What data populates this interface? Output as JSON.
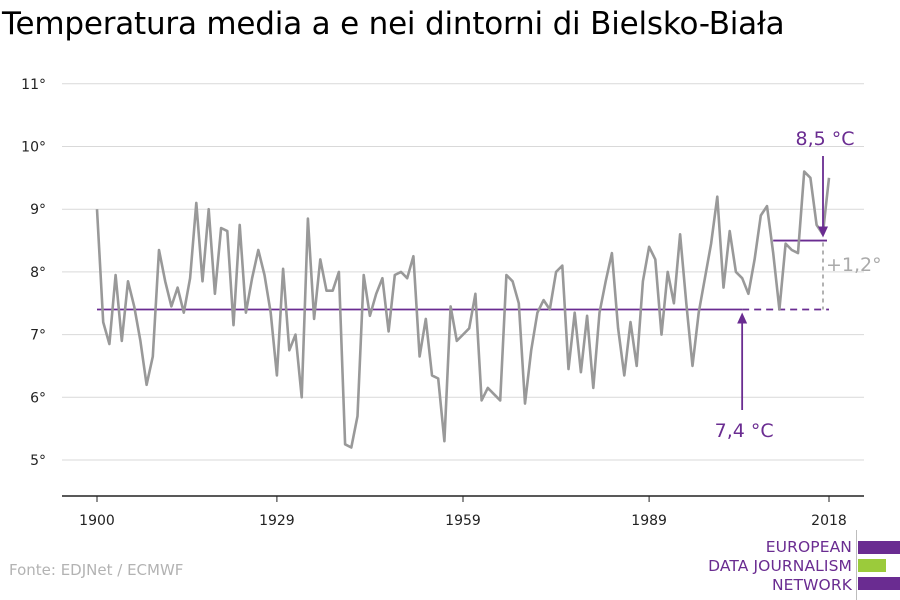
{
  "chart_data": {
    "type": "line",
    "title": "Temperatura media a e nei dintorni di Bielsko-Biała",
    "xlabel": "",
    "ylabel": "",
    "xlim": [
      1900,
      2018
    ],
    "ylim": [
      4.5,
      11.2
    ],
    "x_ticks": [
      1900,
      1929,
      1959,
      1989,
      2018
    ],
    "x_tick_labels": [
      "1900",
      "1929",
      "1959",
      "1989",
      "2018"
    ],
    "y_ticks": [
      5,
      6,
      7,
      8,
      9,
      10,
      11
    ],
    "y_tick_labels": [
      "5°",
      "6°",
      "7°",
      "8°",
      "9°",
      "10°",
      "11°"
    ],
    "grid": true,
    "series": [
      {
        "color": "#999999",
        "x_start": 1900,
        "values": [
          9.0,
          7.2,
          6.85,
          7.95,
          6.9,
          7.85,
          7.45,
          6.9,
          6.2,
          6.65,
          8.35,
          7.85,
          7.45,
          7.75,
          7.35,
          7.9,
          9.1,
          7.85,
          9.0,
          7.65,
          8.7,
          8.65,
          7.15,
          8.75,
          7.35,
          7.9,
          8.35,
          7.95,
          7.35,
          6.35,
          8.05,
          6.75,
          7.0,
          6.0,
          8.85,
          7.25,
          8.2,
          7.7,
          7.7,
          8.0,
          5.25,
          5.2,
          5.7,
          7.95,
          7.3,
          7.65,
          7.9,
          7.05,
          7.95,
          8.0,
          7.9,
          8.25,
          6.65,
          7.25,
          6.35,
          6.3,
          5.3,
          7.45,
          6.9,
          7.0,
          7.1,
          7.65,
          5.95,
          6.15,
          6.05,
          5.95,
          7.95,
          7.85,
          7.5,
          5.9,
          6.75,
          7.35,
          7.55,
          7.4,
          8.0,
          8.1,
          6.45,
          7.35,
          6.4,
          7.3,
          6.15,
          7.35,
          7.85,
          8.3,
          7.1,
          6.35,
          7.2,
          6.5,
          7.85,
          8.4,
          8.2,
          7.0,
          8.0,
          7.5,
          8.6,
          7.5,
          6.5,
          7.35,
          7.9,
          8.45,
          9.2,
          7.75,
          8.65,
          8.0,
          7.9,
          7.65,
          8.2,
          8.9,
          9.05,
          8.3,
          7.4,
          8.45,
          8.35,
          8.3,
          9.6,
          9.5,
          8.75,
          8.6,
          9.5
        ]
      }
    ],
    "baseline": {
      "value": 7.4,
      "label": "7,4 °C",
      "x_solid_end": 2004,
      "x_end": 2018,
      "color": "#6a2c91"
    },
    "recent": {
      "value": 8.5,
      "label": "8,5 °C",
      "x_start": 2009,
      "x_end": 2018,
      "color": "#6a2c91"
    },
    "difference_label": "+1,2°"
  },
  "source": "Fonte: EDJNet / ECMWF",
  "logo": {
    "lines": [
      "EUROPEAN",
      "DATA JOURNALISM",
      "NETWORK"
    ],
    "bar_colors": [
      "#6a2c91",
      "#9bcb3b",
      "#6a2c91"
    ]
  }
}
